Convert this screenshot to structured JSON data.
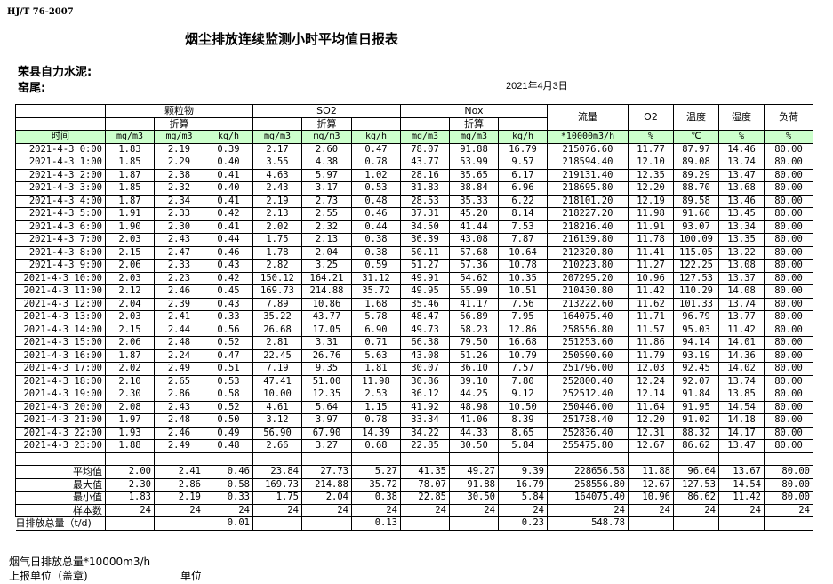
{
  "header": {
    "standard": "HJ/T  76-2007",
    "title": "烟尘排放连续监测小时平均值日报表",
    "company": "荣县自力水泥:",
    "kiln": "窑尾:",
    "date": "2021年4月3日"
  },
  "table": {
    "groups": {
      "particulate": "颗粒物",
      "so2": "SO2",
      "nox": "Nox",
      "flow": "流量",
      "o2": "O2",
      "temp": "温度",
      "humidity": "湿度",
      "load": "负荷"
    },
    "converted_label": "折算",
    "units": [
      "时间",
      "mg/m3",
      "mg/m3",
      "kg/h",
      "mg/m3",
      "mg/m3",
      "kg/h",
      "mg/m3",
      "mg/m3",
      "kg/h",
      "*10000m3/h",
      "%",
      "℃",
      "%",
      "%"
    ],
    "rows": [
      [
        "2021-4-3 0:00",
        "1.83",
        "2.19",
        "0.39",
        "2.17",
        "2.60",
        "0.47",
        "78.07",
        "91.88",
        "16.79",
        "215076.60",
        "11.77",
        "87.97",
        "14.46",
        "80.00"
      ],
      [
        "2021-4-3 1:00",
        "1.85",
        "2.29",
        "0.40",
        "3.55",
        "4.38",
        "0.78",
        "43.77",
        "53.99",
        "9.57",
        "218594.40",
        "12.10",
        "89.08",
        "13.74",
        "80.00"
      ],
      [
        "2021-4-3 2:00",
        "1.87",
        "2.38",
        "0.41",
        "4.63",
        "5.97",
        "1.02",
        "28.16",
        "35.65",
        "6.17",
        "219131.40",
        "12.35",
        "89.29",
        "13.47",
        "80.00"
      ],
      [
        "2021-4-3 3:00",
        "1.85",
        "2.32",
        "0.40",
        "2.43",
        "3.17",
        "0.53",
        "31.83",
        "38.84",
        "6.96",
        "218695.80",
        "12.20",
        "88.70",
        "13.68",
        "80.00"
      ],
      [
        "2021-4-3 4:00",
        "1.87",
        "2.34",
        "0.41",
        "2.19",
        "2.73",
        "0.48",
        "28.53",
        "35.33",
        "6.22",
        "218101.20",
        "12.19",
        "89.58",
        "13.46",
        "80.00"
      ],
      [
        "2021-4-3 5:00",
        "1.91",
        "2.33",
        "0.42",
        "2.13",
        "2.55",
        "0.46",
        "37.31",
        "45.20",
        "8.14",
        "218227.20",
        "11.98",
        "91.60",
        "13.45",
        "80.00"
      ],
      [
        "2021-4-3 6:00",
        "1.90",
        "2.30",
        "0.41",
        "2.02",
        "2.32",
        "0.44",
        "34.50",
        "41.44",
        "7.53",
        "218216.40",
        "11.91",
        "93.07",
        "13.34",
        "80.00"
      ],
      [
        "2021-4-3 7:00",
        "2.03",
        "2.43",
        "0.44",
        "1.75",
        "2.13",
        "0.38",
        "36.39",
        "43.08",
        "7.87",
        "216139.80",
        "11.78",
        "100.09",
        "13.35",
        "80.00"
      ],
      [
        "2021-4-3 8:00",
        "2.15",
        "2.47",
        "0.46",
        "1.78",
        "2.04",
        "0.38",
        "50.11",
        "57.68",
        "10.64",
        "212320.80",
        "11.41",
        "115.05",
        "13.22",
        "80.00"
      ],
      [
        "2021-4-3 9:00",
        "2.06",
        "2.33",
        "0.43",
        "2.82",
        "3.25",
        "0.59",
        "51.27",
        "57.36",
        "10.78",
        "210223.80",
        "11.27",
        "122.25",
        "13.08",
        "80.00"
      ],
      [
        "2021-4-3 10:00",
        "2.03",
        "2.23",
        "0.42",
        "150.12",
        "164.21",
        "31.12",
        "49.91",
        "54.62",
        "10.35",
        "207295.20",
        "10.96",
        "127.53",
        "13.37",
        "80.00"
      ],
      [
        "2021-4-3 11:00",
        "2.12",
        "2.46",
        "0.45",
        "169.73",
        "214.88",
        "35.72",
        "49.95",
        "55.99",
        "10.51",
        "210430.80",
        "11.42",
        "110.29",
        "14.08",
        "80.00"
      ],
      [
        "2021-4-3 12:00",
        "2.04",
        "2.39",
        "0.43",
        "7.89",
        "10.86",
        "1.68",
        "35.46",
        "41.17",
        "7.56",
        "213222.60",
        "11.62",
        "101.33",
        "13.74",
        "80.00"
      ],
      [
        "2021-4-3 13:00",
        "2.03",
        "2.41",
        "0.33",
        "35.22",
        "43.77",
        "5.78",
        "48.47",
        "56.89",
        "7.95",
        "164075.40",
        "11.71",
        "96.79",
        "13.77",
        "80.00"
      ],
      [
        "2021-4-3 14:00",
        "2.15",
        "2.44",
        "0.56",
        "26.68",
        "17.05",
        "6.90",
        "49.73",
        "58.23",
        "12.86",
        "258556.80",
        "11.57",
        "95.03",
        "11.42",
        "80.00"
      ],
      [
        "2021-4-3 15:00",
        "2.06",
        "2.48",
        "0.52",
        "2.81",
        "3.31",
        "0.71",
        "66.38",
        "79.50",
        "16.68",
        "251253.60",
        "11.86",
        "94.14",
        "14.01",
        "80.00"
      ],
      [
        "2021-4-3 16:00",
        "1.87",
        "2.24",
        "0.47",
        "22.45",
        "26.76",
        "5.63",
        "43.08",
        "51.26",
        "10.79",
        "250590.60",
        "11.79",
        "93.19",
        "14.36",
        "80.00"
      ],
      [
        "2021-4-3 17:00",
        "2.02",
        "2.49",
        "0.51",
        "7.19",
        "9.35",
        "1.81",
        "30.07",
        "36.10",
        "7.57",
        "251796.00",
        "12.03",
        "92.45",
        "14.02",
        "80.00"
      ],
      [
        "2021-4-3 18:00",
        "2.10",
        "2.65",
        "0.53",
        "47.41",
        "51.00",
        "11.98",
        "30.86",
        "39.10",
        "7.80",
        "252800.40",
        "12.24",
        "92.07",
        "13.74",
        "80.00"
      ],
      [
        "2021-4-3 19:00",
        "2.30",
        "2.86",
        "0.58",
        "10.00",
        "12.35",
        "2.53",
        "36.12",
        "44.25",
        "9.12",
        "252512.40",
        "12.14",
        "91.84",
        "13.85",
        "80.00"
      ],
      [
        "2021-4-3 20:00",
        "2.08",
        "2.43",
        "0.52",
        "4.61",
        "5.64",
        "1.15",
        "41.92",
        "48.98",
        "10.50",
        "250446.00",
        "11.64",
        "91.95",
        "14.54",
        "80.00"
      ],
      [
        "2021-4-3 21:00",
        "1.97",
        "2.48",
        "0.50",
        "3.12",
        "3.97",
        "0.78",
        "33.34",
        "41.06",
        "8.39",
        "251738.40",
        "12.20",
        "91.02",
        "14.18",
        "80.00"
      ],
      [
        "2021-4-3 22:00",
        "1.93",
        "2.46",
        "0.49",
        "56.90",
        "67.90",
        "14.39",
        "34.22",
        "44.33",
        "8.65",
        "252836.40",
        "12.31",
        "88.32",
        "14.17",
        "80.00"
      ],
      [
        "2021-4-3 23:00",
        "1.88",
        "2.49",
        "0.48",
        "2.66",
        "3.27",
        "0.68",
        "22.85",
        "30.50",
        "5.84",
        "255475.80",
        "12.67",
        "86.62",
        "13.47",
        "80.00"
      ]
    ],
    "stats": [
      [
        "平均值",
        "2.00",
        "2.41",
        "0.46",
        "23.84",
        "27.73",
        "5.27",
        "41.35",
        "49.27",
        "9.39",
        "228656.58",
        "11.88",
        "96.64",
        "13.67",
        "80.00"
      ],
      [
        "最大值",
        "2.30",
        "2.86",
        "0.58",
        "169.73",
        "214.88",
        "35.72",
        "78.07",
        "91.88",
        "16.79",
        "258556.80",
        "12.67",
        "127.53",
        "14.54",
        "80.00"
      ],
      [
        "最小值",
        "1.83",
        "2.19",
        "0.33",
        "1.75",
        "2.04",
        "0.38",
        "22.85",
        "30.50",
        "5.84",
        "164075.40",
        "10.96",
        "86.62",
        "11.42",
        "80.00"
      ],
      [
        "样本数",
        "24",
        "24",
        "24",
        "24",
        "24",
        "24",
        "24",
        "24",
        "24",
        "24",
        "24",
        "24",
        "24",
        "24"
      ]
    ],
    "daily_total": [
      "日排放总量（t/d)",
      "",
      "",
      "0.01",
      "",
      "",
      "0.13",
      "",
      "",
      "0.23",
      "548.78",
      "",
      "",
      "",
      ""
    ]
  },
  "footer": {
    "flue_gas_total": "烟气日排放总量*10000m3/h",
    "reporting_unit": "上报单位（盖章)",
    "unit": "单位"
  }
}
